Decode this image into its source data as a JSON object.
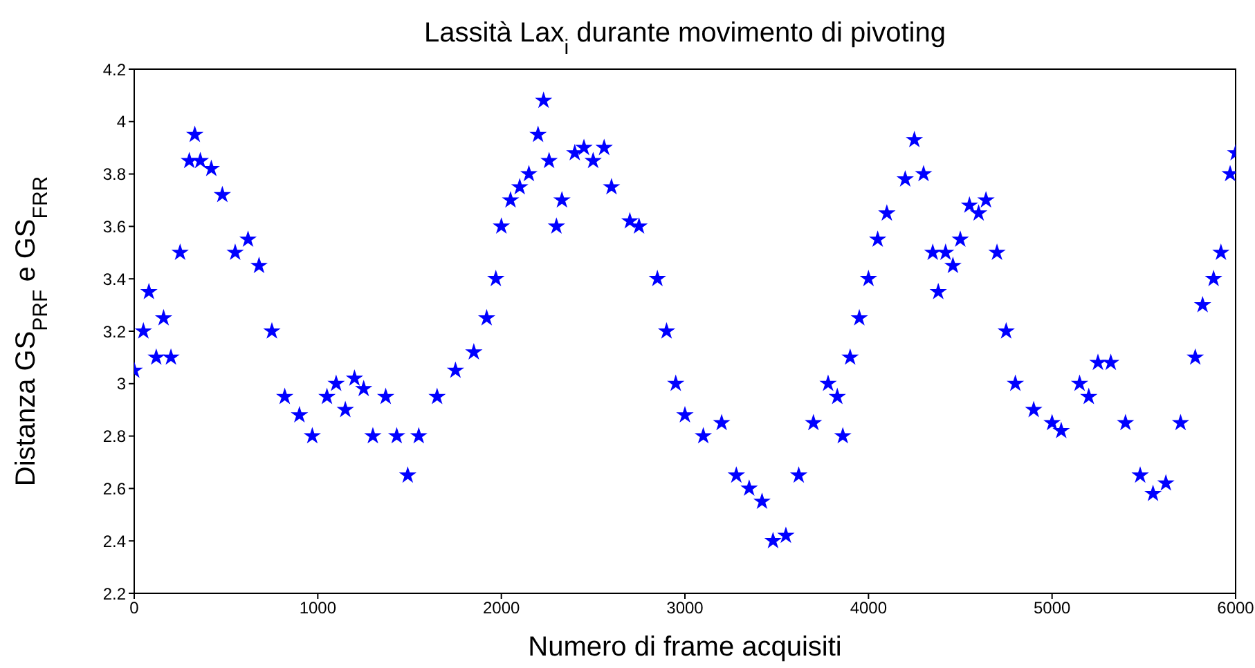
{
  "chart_data": {
    "type": "scatter",
    "title": "Lassità Lax$_{i}$ durante movimento di pivoting",
    "xlabel": "Numero di frame acquisiti",
    "ylabel": "Distanza GS$_{PRF}$ e GS$_{FRR}$",
    "x": [
      0,
      50,
      80,
      120,
      160,
      200,
      250,
      300,
      330,
      360,
      420,
      480,
      550,
      620,
      680,
      750,
      820,
      900,
      970,
      1050,
      1100,
      1150,
      1200,
      1250,
      1300,
      1370,
      1430,
      1490,
      1550,
      1650,
      1750,
      1850,
      1920,
      1970,
      2000,
      2050,
      2100,
      2150,
      2200,
      2230,
      2260,
      2300,
      2330,
      2400,
      2450,
      2500,
      2560,
      2600,
      2700,
      2750,
      2850,
      2900,
      2950,
      3000,
      3100,
      3200,
      3280,
      3350,
      3420,
      3480,
      3550,
      3620,
      3700,
      3780,
      3830,
      3860,
      3900,
      3950,
      4000,
      4050,
      4100,
      4200,
      4250,
      4300,
      4350,
      4380,
      4420,
      4460,
      4500,
      4550,
      4600,
      4640,
      4700,
      4750,
      4800,
      4900,
      5000,
      5050,
      5150,
      5200,
      5250,
      5320,
      5400,
      5480,
      5550,
      5620,
      5700,
      5780,
      5820,
      5880,
      5920,
      5970,
      6000
    ],
    "series": [
      {
        "color": "#0000ff",
        "values": [
          3.05,
          3.2,
          3.35,
          3.1,
          3.25,
          3.1,
          3.5,
          3.85,
          3.95,
          3.85,
          3.82,
          3.72,
          3.5,
          3.55,
          3.45,
          3.2,
          2.95,
          2.88,
          2.8,
          2.95,
          3.0,
          2.9,
          3.02,
          2.98,
          2.8,
          2.95,
          2.8,
          2.65,
          2.8,
          2.95,
          3.05,
          3.12,
          3.25,
          3.4,
          3.6,
          3.7,
          3.75,
          3.8,
          3.95,
          4.08,
          3.85,
          3.6,
          3.7,
          3.88,
          3.9,
          3.85,
          3.9,
          3.75,
          3.62,
          3.6,
          3.4,
          3.2,
          3.0,
          2.88,
          2.8,
          2.85,
          2.65,
          2.6,
          2.55,
          2.4,
          2.42,
          2.65,
          2.85,
          3.0,
          2.95,
          2.8,
          3.1,
          3.25,
          3.4,
          3.55,
          3.65,
          3.78,
          3.93,
          3.8,
          3.5,
          3.35,
          3.5,
          3.45,
          3.55,
          3.68,
          3.65,
          3.7,
          3.5,
          3.2,
          3.0,
          2.9,
          2.85,
          2.82,
          3.0,
          2.95,
          3.08,
          3.08,
          2.85,
          2.65,
          2.58,
          2.62,
          2.85,
          3.1,
          3.3,
          3.4,
          3.5,
          3.8,
          3.88
        ]
      }
    ],
    "xlim": [
      0,
      6000
    ],
    "xticks": [
      0,
      1000,
      2000,
      3000,
      4000,
      5000,
      6000
    ],
    "ylim": [
      2.2,
      4.2
    ],
    "yticks": [
      2.2,
      2.4,
      2.6,
      2.8,
      3,
      3.2,
      3.4,
      3.6,
      3.8,
      4,
      4.2
    ],
    "grid": false,
    "marker": "star"
  }
}
